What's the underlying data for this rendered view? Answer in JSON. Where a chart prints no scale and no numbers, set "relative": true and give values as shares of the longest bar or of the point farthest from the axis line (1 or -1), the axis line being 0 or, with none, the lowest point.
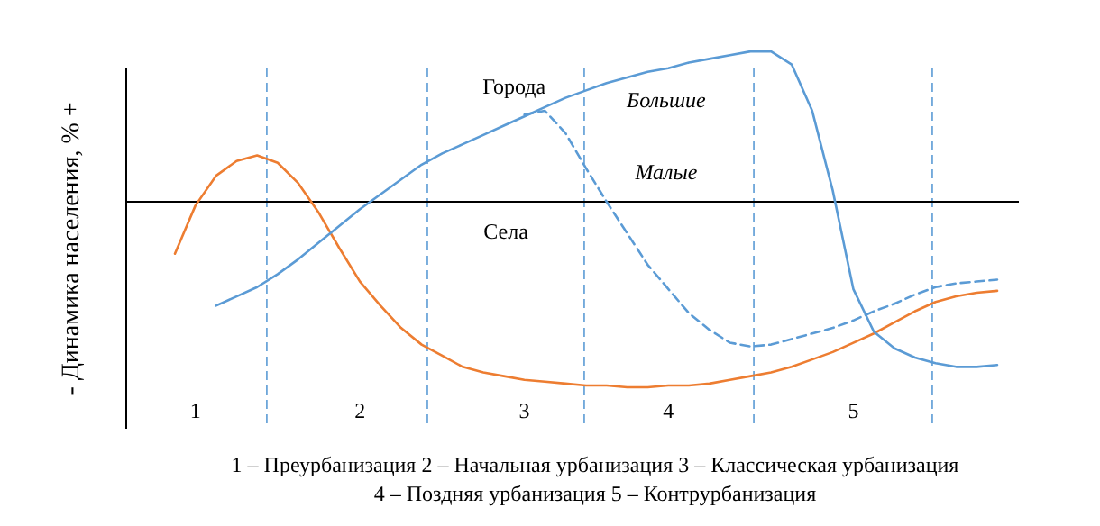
{
  "chart_data": {
    "type": "line",
    "relative": true,
    "ylabel": "-  Динамика населения, %  +",
    "categories": [
      null,
      "1",
      null,
      null,
      null,
      null,
      null,
      null,
      null,
      "2",
      null,
      null,
      null,
      null,
      null,
      null,
      null,
      "3",
      null,
      null,
      null,
      null,
      null,
      null,
      "4",
      null,
      null,
      null,
      null,
      null,
      null,
      null,
      null,
      "5",
      null,
      null,
      null,
      null,
      null,
      null,
      null
    ],
    "series": [
      {
        "color": "#ed7d31",
        "line_style": "solid",
        "values": [
          -0.28,
          -0.02,
          0.14,
          0.22,
          0.25,
          0.21,
          0.1,
          -0.06,
          -0.25,
          -0.43,
          -0.56,
          -0.68,
          -0.77,
          -0.83,
          -0.89,
          -0.92,
          -0.94,
          -0.96,
          -0.97,
          -0.98,
          -0.99,
          -0.99,
          -1,
          -1,
          -0.99,
          -0.99,
          -0.98,
          -0.96,
          -0.94,
          -0.92,
          -0.89,
          -0.85,
          -0.81,
          -0.76,
          -0.71,
          -0.65,
          -0.59,
          -0.54,
          -0.51,
          -0.49,
          -0.48
        ]
      },
      {
        "color": "#5b9bd5",
        "line_style": "solid",
        "values": [
          null,
          null,
          -0.56,
          -0.51,
          -0.46,
          -0.39,
          -0.31,
          -0.22,
          -0.13,
          -0.04,
          0.04,
          0.12,
          0.2,
          0.26,
          0.31,
          0.36,
          0.41,
          0.46,
          0.51,
          0.56,
          0.6,
          0.64,
          0.67,
          0.7,
          0.72,
          0.75,
          0.77,
          0.79,
          0.81,
          0.81,
          0.74,
          0.49,
          0.06,
          -0.47,
          -0.7,
          -0.79,
          -0.84,
          -0.87,
          -0.89,
          -0.89,
          -0.88
        ]
      },
      {
        "color": "#5b9bd5",
        "line_style": "dashed",
        "values": [
          null,
          null,
          null,
          null,
          null,
          null,
          null,
          null,
          null,
          null,
          null,
          null,
          null,
          null,
          null,
          null,
          null,
          0.47,
          0.49,
          0.37,
          0.18,
          0,
          -0.17,
          -0.34,
          -0.47,
          -0.6,
          -0.69,
          -0.76,
          -0.78,
          -0.77,
          -0.74,
          -0.71,
          -0.68,
          -0.64,
          -0.59,
          -0.55,
          -0.5,
          -0.46,
          -0.44,
          -0.43,
          -0.42
        ]
      }
    ],
    "annotations": [
      "Города",
      "Большие",
      "Малые",
      "Села",
      "1 – Преурбанизация",
      "2 – Начальная урбанизация",
      "3 – Классическая урбанизация",
      "4 – Поздняя урбанизация",
      "5 – Контрурбанизация"
    ]
  }
}
